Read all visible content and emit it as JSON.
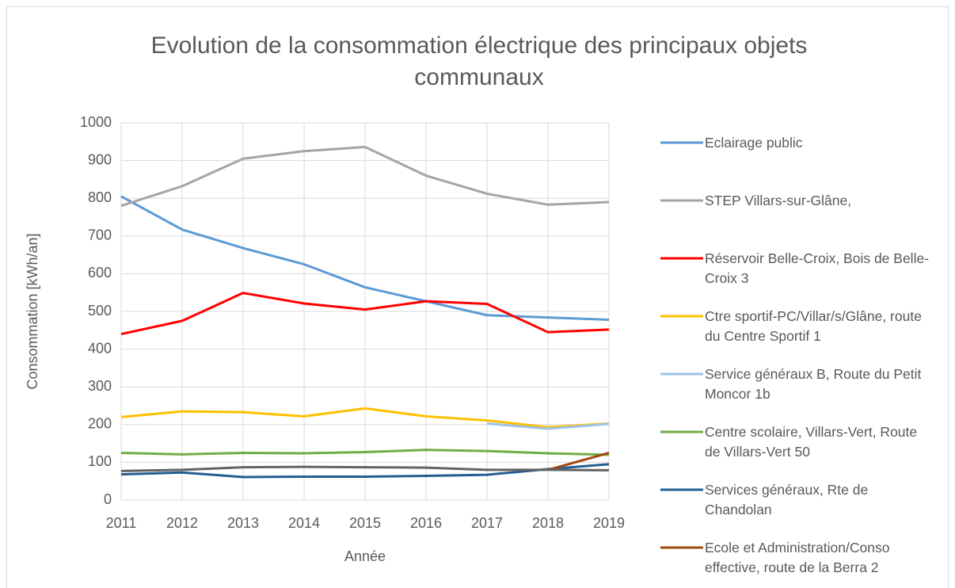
{
  "chart_data": {
    "type": "line",
    "title": "Evolution de la consommation électrique des principaux objets communaux",
    "x_label": "Année",
    "y_label": "Consommation [kWh/an]",
    "x": [
      2011,
      2012,
      2013,
      2014,
      2015,
      2016,
      2017,
      2018,
      2019
    ],
    "xlim": [
      2011,
      2019
    ],
    "xticks": [
      2011,
      2012,
      2013,
      2014,
      2015,
      2016,
      2017,
      2018,
      2019
    ],
    "ylim": [
      0,
      1000
    ],
    "yticks": [
      0,
      100,
      200,
      300,
      400,
      500,
      600,
      700,
      800,
      900,
      1000
    ],
    "grid": true,
    "legend": "right",
    "series": [
      {
        "name": "Eclairage public",
        "color": "#5b9bd5",
        "values": [
          805,
          717,
          668,
          625,
          564,
          527,
          490,
          484,
          478
        ]
      },
      {
        "name": "STEP Villars-sur-Glâne,",
        "color": "#a5a5a5",
        "values": [
          780,
          832,
          905,
          925,
          936,
          860,
          812,
          783,
          790
        ]
      },
      {
        "name": "Réservoir Belle-Croix, Bois de Belle-Croix 3",
        "color": "#ff0000",
        "values": [
          440,
          475,
          549,
          521,
          505,
          527,
          520,
          445,
          452
        ]
      },
      {
        "name": "Ctre sportif-PC/Villar/s/Glâne, route du Centre Sportif 1",
        "color": "#ffc000",
        "values": [
          220,
          235,
          233,
          222,
          243,
          222,
          211,
          193,
          203
        ]
      },
      {
        "name": "Service généraux B, Route du Petit Moncor 1b",
        "color": "#9dc3e6",
        "values": [
          null,
          null,
          null,
          null,
          null,
          null,
          203,
          189,
          202
        ]
      },
      {
        "name": "Centre scolaire, Villars-Vert, Route de Villars-Vert 50",
        "color": "#70ad47",
        "values": [
          125,
          121,
          125,
          124,
          127,
          133,
          130,
          124,
          120
        ]
      },
      {
        "name": "Services généraux, Rte de Chandolan",
        "color": "#255e91",
        "values": [
          68,
          73,
          61,
          62,
          62,
          64,
          67,
          82,
          95
        ]
      },
      {
        "name": "Ecole et Administration/Conso effective, route de la Berra 2",
        "color": "#9e480e",
        "values": [
          null,
          null,
          null,
          null,
          null,
          null,
          null,
          80,
          125
        ]
      },
      {
        "color": "#636363",
        "values": [
          77,
          80,
          87,
          88,
          87,
          86,
          80,
          80,
          79
        ]
      }
    ]
  }
}
